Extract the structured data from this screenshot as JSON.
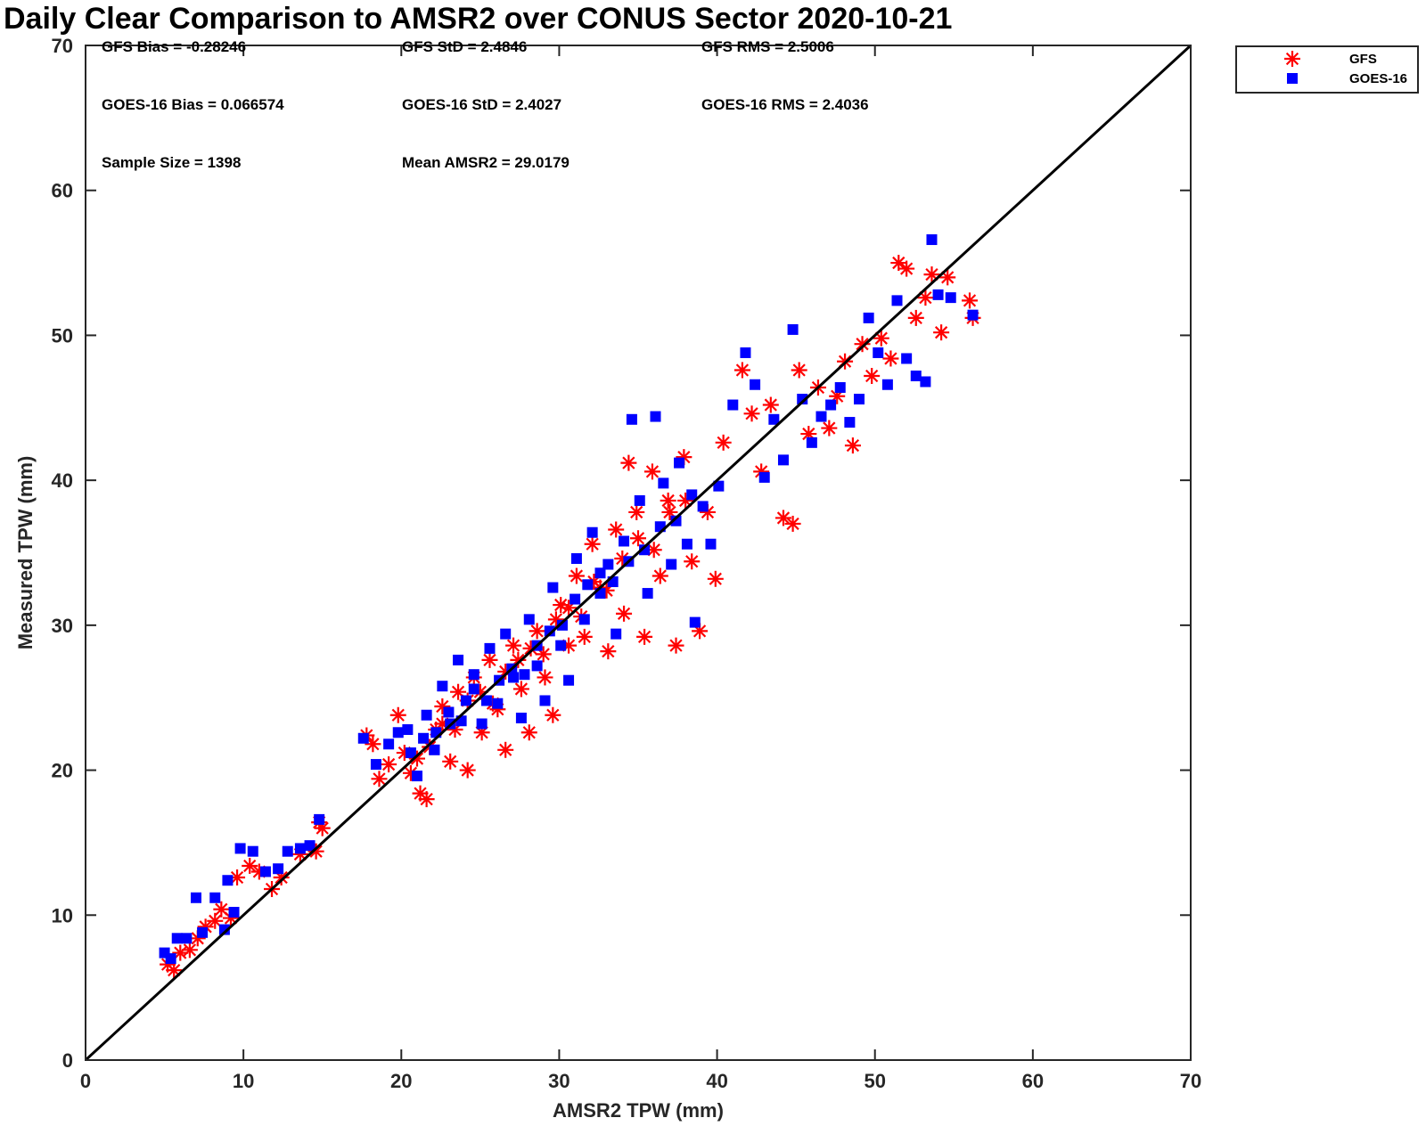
{
  "chart_data": {
    "type": "scatter",
    "title": "Daily Clear Comparison to AMSR2 over CONUS Sector 2020-10-21",
    "xlabel": "AMSR2 TPW (mm)",
    "ylabel": "Measured TPW (mm)",
    "xlim": [
      0,
      70
    ],
    "ylim": [
      0,
      70
    ],
    "x_ticks": [
      "0",
      "10",
      "20",
      "30",
      "40",
      "50",
      "60",
      "70"
    ],
    "y_ticks": [
      "0",
      "10",
      "20",
      "30",
      "40",
      "50",
      "60",
      "70"
    ],
    "grid": false,
    "legend_position": "outside-top-right",
    "reference_line": {
      "from": [
        0,
        0
      ],
      "to": [
        70,
        70
      ],
      "color": "#000000"
    },
    "annotations": [
      {
        "text": "GFS Bias = -0.28246",
        "row": 0,
        "col": 0
      },
      {
        "text": "GFS StD = 2.4846",
        "row": 0,
        "col": 1
      },
      {
        "text": "GFS RMS = 2.5006",
        "row": 0,
        "col": 2
      },
      {
        "text": "GOES-16 Bias = 0.066574",
        "row": 1,
        "col": 0
      },
      {
        "text": "GOES-16 StD = 2.4027",
        "row": 1,
        "col": 1
      },
      {
        "text": "GOES-16 RMS = 2.4036",
        "row": 1,
        "col": 2
      },
      {
        "text": "Sample Size = 1398",
        "row": 2,
        "col": 0
      },
      {
        "text": "Mean AMSR2 = 29.0179",
        "row": 2,
        "col": 1
      }
    ],
    "series": [
      {
        "name": "GFS",
        "marker": "asterisk",
        "color": "#ff0000",
        "points": [
          [
            5.2,
            6.6
          ],
          [
            5.6,
            6.2
          ],
          [
            6.0,
            7.4
          ],
          [
            6.6,
            7.6
          ],
          [
            7.1,
            8.4
          ],
          [
            7.6,
            9.2
          ],
          [
            8.2,
            9.6
          ],
          [
            8.6,
            10.4
          ],
          [
            9.2,
            9.8
          ],
          [
            9.6,
            12.6
          ],
          [
            10.4,
            13.4
          ],
          [
            11.0,
            13.0
          ],
          [
            11.8,
            11.8
          ],
          [
            12.4,
            12.6
          ],
          [
            13.6,
            14.2
          ],
          [
            14.6,
            14.4
          ],
          [
            14.8,
            16.4
          ],
          [
            15.0,
            16.0
          ],
          [
            17.8,
            22.4
          ],
          [
            18.2,
            21.8
          ],
          [
            18.6,
            19.4
          ],
          [
            19.2,
            20.4
          ],
          [
            19.8,
            23.8
          ],
          [
            20.2,
            21.2
          ],
          [
            20.6,
            19.8
          ],
          [
            21.2,
            18.4
          ],
          [
            21.6,
            18.0
          ],
          [
            22.2,
            22.8
          ],
          [
            22.6,
            24.4
          ],
          [
            23.1,
            20.6
          ],
          [
            23.6,
            25.4
          ],
          [
            24.2,
            20.0
          ],
          [
            24.6,
            26.4
          ],
          [
            25.1,
            22.6
          ],
          [
            25.6,
            27.6
          ],
          [
            26.1,
            24.2
          ],
          [
            26.6,
            21.4
          ],
          [
            27.1,
            28.6
          ],
          [
            27.6,
            25.6
          ],
          [
            28.1,
            22.6
          ],
          [
            28.6,
            29.6
          ],
          [
            29.1,
            26.4
          ],
          [
            29.6,
            23.8
          ],
          [
            30.1,
            31.4
          ],
          [
            30.6,
            28.6
          ],
          [
            31.1,
            33.4
          ],
          [
            31.6,
            29.2
          ],
          [
            32.1,
            35.6
          ],
          [
            32.6,
            32.6
          ],
          [
            33.1,
            28.2
          ],
          [
            33.6,
            36.6
          ],
          [
            34.1,
            30.8
          ],
          [
            34.4,
            41.2
          ],
          [
            34.9,
            37.8
          ],
          [
            35.4,
            29.2
          ],
          [
            35.9,
            40.6
          ],
          [
            36.4,
            33.4
          ],
          [
            36.9,
            38.6
          ],
          [
            37.4,
            28.6
          ],
          [
            37.9,
            41.6
          ],
          [
            38.4,
            34.4
          ],
          [
            38.9,
            29.6
          ],
          [
            39.4,
            37.8
          ],
          [
            39.9,
            33.2
          ],
          [
            40.4,
            42.6
          ],
          [
            41.6,
            47.6
          ],
          [
            42.2,
            44.6
          ],
          [
            42.8,
            40.6
          ],
          [
            43.4,
            45.2
          ],
          [
            44.2,
            37.4
          ],
          [
            44.8,
            37.0
          ],
          [
            45.2,
            47.6
          ],
          [
            45.8,
            43.2
          ],
          [
            46.4,
            46.4
          ],
          [
            47.1,
            43.6
          ],
          [
            47.6,
            45.8
          ],
          [
            48.1,
            48.2
          ],
          [
            48.6,
            42.4
          ],
          [
            49.2,
            49.4
          ],
          [
            49.8,
            47.2
          ],
          [
            50.4,
            49.8
          ],
          [
            51.0,
            48.4
          ],
          [
            51.5,
            55.0
          ],
          [
            52.0,
            54.6
          ],
          [
            52.6,
            51.2
          ],
          [
            53.2,
            52.6
          ],
          [
            53.6,
            54.2
          ],
          [
            54.2,
            50.2
          ],
          [
            54.6,
            54.0
          ],
          [
            56.0,
            52.4
          ],
          [
            56.2,
            51.2
          ],
          [
            21.0,
            20.8
          ],
          [
            21.8,
            21.6
          ],
          [
            22.6,
            23.2
          ],
          [
            23.4,
            22.8
          ],
          [
            24.2,
            24.8
          ],
          [
            25.0,
            25.4
          ],
          [
            25.8,
            24.6
          ],
          [
            26.6,
            26.8
          ],
          [
            27.4,
            27.6
          ],
          [
            28.2,
            28.4
          ],
          [
            29.0,
            28.0
          ],
          [
            29.8,
            30.4
          ],
          [
            30.6,
            31.2
          ],
          [
            31.4,
            30.6
          ],
          [
            32.2,
            33.0
          ],
          [
            33.0,
            32.4
          ],
          [
            34.0,
            34.6
          ],
          [
            35.0,
            36.0
          ],
          [
            36.0,
            35.2
          ],
          [
            37.0,
            37.8
          ],
          [
            38.0,
            38.6
          ]
        ]
      },
      {
        "name": "GOES-16",
        "marker": "square",
        "color": "#0000ff",
        "points": [
          [
            5.0,
            7.4
          ],
          [
            5.4,
            7.0
          ],
          [
            5.8,
            8.4
          ],
          [
            6.4,
            8.4
          ],
          [
            7.0,
            11.2
          ],
          [
            7.4,
            8.8
          ],
          [
            8.2,
            11.2
          ],
          [
            8.8,
            9.0
          ],
          [
            9.0,
            12.4
          ],
          [
            9.4,
            10.2
          ],
          [
            9.8,
            14.6
          ],
          [
            10.6,
            14.4
          ],
          [
            11.4,
            13.0
          ],
          [
            12.2,
            13.2
          ],
          [
            12.8,
            14.4
          ],
          [
            13.6,
            14.6
          ],
          [
            14.2,
            14.8
          ],
          [
            14.8,
            16.6
          ],
          [
            17.6,
            22.2
          ],
          [
            18.4,
            20.4
          ],
          [
            19.2,
            21.8
          ],
          [
            19.8,
            22.6
          ],
          [
            20.4,
            22.8
          ],
          [
            21.0,
            19.6
          ],
          [
            21.6,
            23.8
          ],
          [
            22.1,
            21.4
          ],
          [
            22.6,
            25.8
          ],
          [
            23.1,
            23.2
          ],
          [
            23.6,
            27.6
          ],
          [
            24.1,
            24.8
          ],
          [
            24.6,
            26.6
          ],
          [
            25.1,
            23.2
          ],
          [
            25.6,
            28.4
          ],
          [
            26.1,
            24.6
          ],
          [
            26.6,
            29.4
          ],
          [
            27.1,
            26.4
          ],
          [
            27.6,
            23.6
          ],
          [
            28.1,
            30.4
          ],
          [
            28.6,
            27.2
          ],
          [
            29.1,
            24.8
          ],
          [
            29.6,
            32.6
          ],
          [
            30.1,
            28.6
          ],
          [
            30.6,
            26.2
          ],
          [
            31.1,
            34.6
          ],
          [
            31.6,
            30.4
          ],
          [
            32.1,
            36.4
          ],
          [
            32.6,
            32.2
          ],
          [
            33.1,
            34.2
          ],
          [
            33.6,
            29.4
          ],
          [
            34.1,
            35.8
          ],
          [
            34.6,
            44.2
          ],
          [
            35.1,
            38.6
          ],
          [
            35.6,
            32.2
          ],
          [
            36.1,
            44.4
          ],
          [
            36.6,
            39.8
          ],
          [
            37.1,
            34.2
          ],
          [
            37.6,
            41.2
          ],
          [
            38.1,
            35.6
          ],
          [
            38.6,
            30.2
          ],
          [
            39.1,
            38.2
          ],
          [
            39.6,
            35.6
          ],
          [
            40.1,
            39.6
          ],
          [
            41.0,
            45.2
          ],
          [
            41.8,
            48.8
          ],
          [
            42.4,
            46.6
          ],
          [
            43.0,
            40.2
          ],
          [
            43.6,
            44.2
          ],
          [
            44.2,
            41.4
          ],
          [
            44.8,
            50.4
          ],
          [
            45.4,
            45.6
          ],
          [
            46.0,
            42.6
          ],
          [
            46.6,
            44.4
          ],
          [
            47.2,
            45.2
          ],
          [
            47.8,
            46.4
          ],
          [
            48.4,
            44.0
          ],
          [
            49.0,
            45.6
          ],
          [
            49.6,
            51.2
          ],
          [
            50.2,
            48.8
          ],
          [
            50.8,
            46.6
          ],
          [
            51.4,
            52.4
          ],
          [
            52.0,
            48.4
          ],
          [
            52.6,
            47.2
          ],
          [
            53.2,
            46.8
          ],
          [
            53.6,
            56.6
          ],
          [
            54.0,
            52.8
          ],
          [
            54.8,
            52.6
          ],
          [
            56.2,
            51.4
          ],
          [
            20.6,
            21.2
          ],
          [
            21.4,
            22.2
          ],
          [
            22.2,
            22.6
          ],
          [
            23.0,
            24.0
          ],
          [
            23.8,
            23.4
          ],
          [
            24.6,
            25.6
          ],
          [
            25.4,
            24.8
          ],
          [
            26.2,
            26.2
          ],
          [
            27.0,
            27.0
          ],
          [
            27.8,
            26.6
          ],
          [
            28.6,
            28.6
          ],
          [
            29.4,
            29.6
          ],
          [
            30.2,
            30.0
          ],
          [
            31.0,
            31.8
          ],
          [
            31.8,
            32.8
          ],
          [
            32.6,
            33.6
          ],
          [
            33.4,
            33.0
          ],
          [
            34.4,
            34.4
          ],
          [
            35.4,
            35.2
          ],
          [
            36.4,
            36.8
          ],
          [
            37.4,
            37.2
          ],
          [
            38.4,
            39.0
          ]
        ]
      }
    ]
  }
}
